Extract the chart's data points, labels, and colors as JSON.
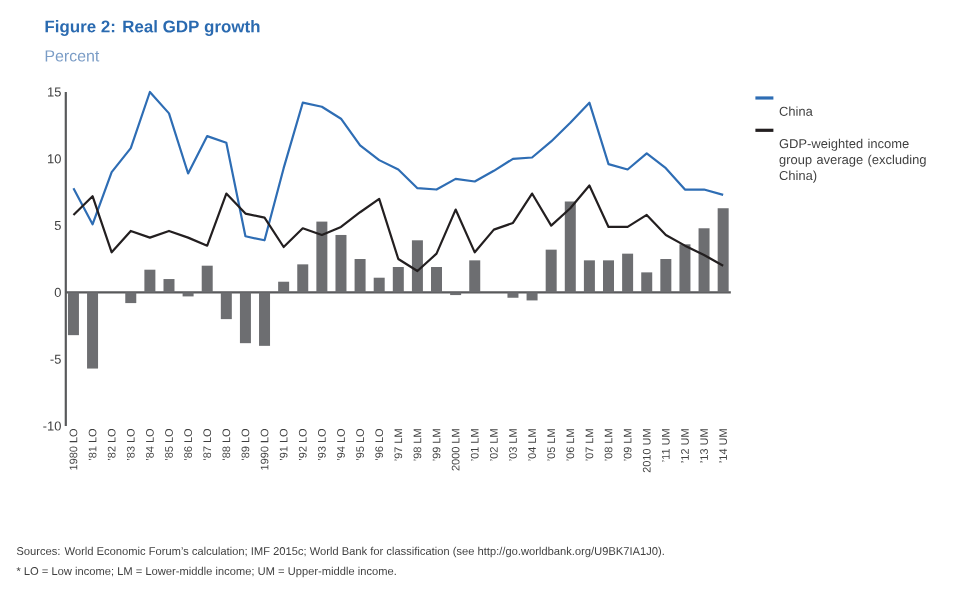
{
  "chart_data": {
    "type": "line",
    "title": "Figure 2: Real GDP growth",
    "subtitle": "Percent",
    "categories": [
      "1980 LO",
      "’81 LO",
      "’82 LO",
      "’83 LO",
      "’84 LO",
      "’85 LO",
      "’86 LO",
      "’87 LO",
      "’88 LO",
      "’89 LO",
      "1990 LO",
      "’91 LO",
      "’92 LO",
      "’93 LO",
      "’94 LO",
      "’95 LO",
      "’96 LO",
      "’97 LM",
      "’98 LM",
      "’99 LM",
      "2000 LM",
      "’01 LM",
      "’02 LM",
      "’03 LM",
      "’04 LM",
      "’05 LM",
      "’06 LM",
      "’07 LM",
      "’08 LM",
      "’09 LM",
      "2010 UM",
      "’11 UM",
      "’12 UM",
      "’13 UM",
      "’14 UM"
    ],
    "series": [
      {
        "type": "bar",
        "color": "#6d6e71",
        "values": [
          -3.2,
          -5.7,
          0,
          -0.8,
          1.7,
          1.0,
          -0.3,
          2.0,
          -2.0,
          -3.8,
          -4.0,
          0.8,
          2.1,
          5.3,
          4.3,
          2.5,
          1.1,
          1.9,
          3.9,
          1.9,
          -0.2,
          2.4,
          0,
          -0.4,
          -0.6,
          3.2,
          6.8,
          2.4,
          2.4,
          2.9,
          1.5,
          2.5,
          3.6,
          4.8,
          6.3
        ]
      },
      {
        "name": "China",
        "color": "#2e6db4",
        "values": [
          7.8,
          5.1,
          9.0,
          10.8,
          15.0,
          13.4,
          8.9,
          11.7,
          11.2,
          4.2,
          3.9,
          9.3,
          14.2,
          13.9,
          13.0,
          11.0,
          9.9,
          9.2,
          7.8,
          7.7,
          8.5,
          8.3,
          9.1,
          10.0,
          10.1,
          11.3,
          12.7,
          14.2,
          9.6,
          9.2,
          10.4,
          9.3,
          7.7,
          7.7,
          7.3
        ]
      },
      {
        "name": "GDP-weighted income group average (excluding China)",
        "color": "#231f20",
        "values": [
          5.8,
          7.2,
          3.0,
          4.6,
          4.1,
          4.6,
          4.1,
          3.5,
          7.4,
          5.9,
          5.6,
          3.4,
          4.8,
          4.3,
          4.9,
          6.0,
          7.0,
          2.5,
          1.6,
          2.9,
          6.2,
          3.0,
          4.7,
          5.2,
          7.4,
          5.0,
          6.3,
          8.0,
          4.9,
          4.9,
          5.8,
          4.3,
          3.5,
          2.8,
          2.0
        ]
      }
    ],
    "ylim": [
      -10,
      15
    ],
    "yticks": [
      -10,
      -5,
      0,
      5,
      10,
      15
    ],
    "legend": "top right",
    "annotations": [
      "Sources: World Economic Forum’s calculation; IMF 2015c; World Bank for classification (see http://go.worldbank.org/U9BK7IA1J0).",
      "*  LO = Low income; LM = Lower-middle income; UM = Upper-middle income."
    ]
  }
}
